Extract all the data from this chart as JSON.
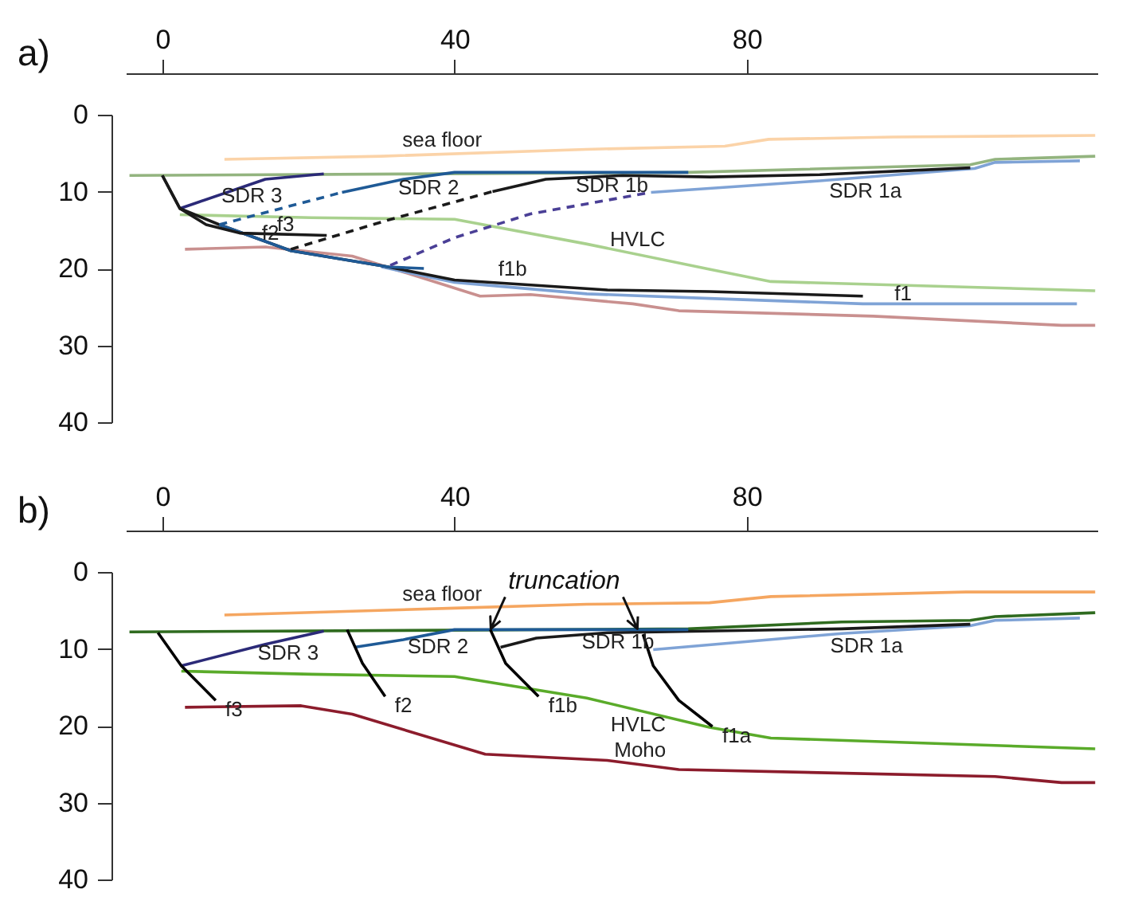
{
  "chart_data": [
    {
      "type": "line",
      "title": "a)",
      "xlim": [
        -5,
        128
      ],
      "xticks": [
        0,
        40,
        80
      ],
      "ylim": [
        40,
        0
      ],
      "yticks": [
        0,
        10,
        20,
        30,
        40
      ],
      "series": [
        {
          "name": "sea floor",
          "color": "#fbd3a8",
          "x": [
            8.5,
            30,
            58,
            77,
            83,
            100,
            127.7
          ],
          "values": [
            5.8,
            5.4,
            4.5,
            4.1,
            3.2,
            2.9,
            2.7
          ]
        },
        {
          "color": "#93b47f",
          "x": [
            -4.5,
            72,
            110.6,
            114,
            127.7
          ],
          "values": [
            7.9,
            7.5,
            6.5,
            5.8,
            5.4
          ]
        },
        {
          "color": "#c9908f",
          "x": [
            3.1,
            14.1,
            26,
            36.5,
            43.5,
            50.4,
            64.4,
            70.7,
            97.3,
            123.1,
            127.7
          ],
          "values": [
            17.5,
            17.2,
            18.4,
            21.5,
            23.6,
            23.4,
            24.6,
            25.5,
            26.2,
            27.4,
            27.4
          ]
        },
        {
          "name": "HVLC",
          "color": "#a9d18e",
          "x": [
            2.4,
            20.4,
            40,
            58,
            74.9,
            83.3,
            127.7
          ],
          "values": [
            13.0,
            13.4,
            13.6,
            16.8,
            20.1,
            21.7,
            22.9
          ]
        },
        {
          "name": "f1",
          "color": "#7fa3d6",
          "x": [
            30,
            40,
            58.1,
            74.9,
            95.9,
            125.2
          ],
          "values": [
            19.8,
            21.8,
            23.3,
            23.9,
            24.6,
            24.6
          ]
        },
        {
          "name": "SDR 1a",
          "color": "#7fa3d6",
          "x": [
            66.9,
            90,
            111.2,
            114,
            125.6
          ],
          "values": [
            10.1,
            8.6,
            7.0,
            6.2,
            6.0
          ]
        },
        {
          "color": "#4a3f96",
          "line_style": "dashed",
          "x": [
            31.2,
            40,
            50.4,
            66.9
          ],
          "values": [
            19.6,
            16.0,
            12.9,
            10.1
          ]
        },
        {
          "color": "#1a1a1a",
          "line_style": "dashed",
          "x": [
            17.6,
            30.9,
            45.2
          ],
          "values": [
            17.5,
            13.7,
            10.0
          ]
        },
        {
          "name": "SDR 1b",
          "color": "#1a1a1a",
          "x": [
            45.2,
            52.5,
            63,
            75,
            90,
            110.6
          ],
          "values": [
            10.0,
            8.4,
            7.9,
            8.1,
            7.8,
            6.9
          ]
        },
        {
          "color": "#1f5a96",
          "line_style": "dashed",
          "x": [
            7.8,
            24.6
          ],
          "values": [
            14.3,
            10.1
          ]
        },
        {
          "name": "SDR 2",
          "color": "#1f5a96",
          "x": [
            24.6,
            33,
            40,
            72
          ],
          "values": [
            10.1,
            8.4,
            7.5,
            7.5
          ]
        },
        {
          "name": "SDR 3",
          "color": "#2b2a78",
          "x": [
            2.4,
            14.1,
            22.1
          ],
          "values": [
            12.2,
            8.4,
            7.7
          ]
        },
        {
          "name": "f1b",
          "color": "#1a1a1a",
          "x": [
            0,
            2.4,
            7.8,
            17.6,
            30.9,
            40,
            60.9,
            74.9,
            95.9
          ],
          "values": [
            7.9,
            12.2,
            14.3,
            17.7,
            19.8,
            21.5,
            22.8,
            23.0,
            23.6
          ]
        },
        {
          "name": "f2",
          "color": "#1f5a96",
          "x": [
            7.8,
            17.6,
            30.9,
            35.8
          ],
          "values": [
            14.3,
            17.7,
            19.8,
            20.0
          ]
        },
        {
          "name": "f3",
          "color": "#1a1a1a",
          "x": [
            0,
            2.4,
            6,
            10.6,
            22.5
          ],
          "values": [
            7.9,
            12.2,
            14.3,
            15.4,
            15.7
          ]
        }
      ]
    },
    {
      "type": "line",
      "title": "b)",
      "xlim": [
        -5,
        128
      ],
      "xticks": [
        0,
        40,
        80
      ],
      "ylim": [
        40,
        0
      ],
      "yticks": [
        0,
        10,
        20,
        30,
        40
      ],
      "series": [
        {
          "name": "sea floor",
          "color": "#f5a660",
          "x": [
            8.5,
            40,
            58.1,
            74.9,
            83.3,
            110,
            127.7
          ],
          "values": [
            5.6,
            4.7,
            4.2,
            4.0,
            3.2,
            2.6,
            2.6
          ]
        },
        {
          "color": "#2f6b1f",
          "x": [
            -4.5,
            72,
            93,
            110.6,
            114,
            127.7
          ],
          "values": [
            7.8,
            7.4,
            6.5,
            6.3,
            5.8,
            5.3
          ]
        },
        {
          "name": "Moho",
          "color": "#8c1c2c",
          "x": [
            3.1,
            19,
            26,
            44.2,
            60.9,
            70.7,
            114,
            123.1,
            127.7
          ],
          "values": [
            17.6,
            17.4,
            18.5,
            23.7,
            24.5,
            25.7,
            26.6,
            27.4,
            27.4
          ]
        },
        {
          "name": "HVLC",
          "color": "#5aab2a",
          "x": [
            2.6,
            20.4,
            40,
            58.1,
            74.9,
            83.3,
            127.7
          ],
          "values": [
            12.9,
            13.3,
            13.6,
            16.4,
            20.2,
            21.6,
            23.0
          ]
        },
        {
          "name": "SDR 1a",
          "color": "#7fa3d6",
          "x": [
            67.2,
            93,
            110.6,
            114,
            125.6
          ],
          "values": [
            10.1,
            8.0,
            7.0,
            6.3,
            6.0
          ]
        },
        {
          "name": "SDR 1b",
          "color": "#1a1a1a",
          "x": [
            46.3,
            51.2,
            61,
            93,
            110.6
          ],
          "values": [
            9.8,
            8.6,
            7.9,
            7.4,
            6.8
          ]
        },
        {
          "name": "SDR 2",
          "color": "#1f5a96",
          "x": [
            26.3,
            33,
            40,
            72
          ],
          "values": [
            9.8,
            8.8,
            7.5,
            7.5
          ]
        },
        {
          "name": "SDR 3",
          "color": "#2b2a78",
          "x": [
            2.6,
            14.1,
            22.1
          ],
          "values": [
            12.2,
            9.4,
            7.7
          ]
        },
        {
          "name": "f3",
          "color": "#000000",
          "x": [
            -0.6,
            2.6,
            7.3
          ],
          "values": [
            7.9,
            12.2,
            16.7
          ]
        },
        {
          "name": "f2",
          "color": "#000000",
          "x": [
            25.3,
            27.4,
            30.5
          ],
          "values": [
            7.5,
            11.9,
            16.2
          ]
        },
        {
          "name": "f1b",
          "color": "#000000",
          "x": [
            44.9,
            47,
            51.5
          ],
          "values": [
            7.5,
            11.9,
            16.2
          ]
        },
        {
          "name": "f1a",
          "color": "#000000",
          "x": [
            65.8,
            67.2,
            70.7,
            75.3
          ],
          "values": [
            8.1,
            12.2,
            16.7,
            20.1
          ]
        }
      ],
      "annotations": [
        {
          "text": "truncation",
          "x": 55,
          "y": 7.6
        }
      ]
    }
  ]
}
